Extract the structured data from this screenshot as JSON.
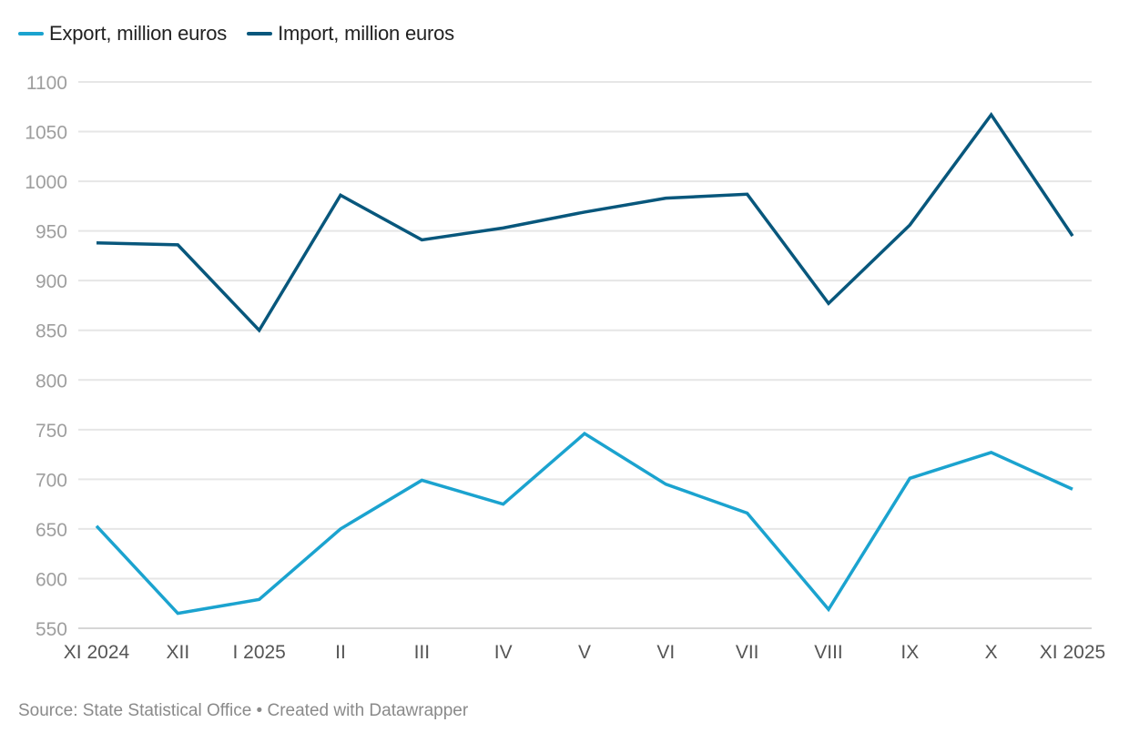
{
  "chart_data": {
    "type": "line",
    "title": "",
    "xlabel": "",
    "ylabel": "",
    "categories": [
      "XI 2024",
      "XII",
      "I 2025",
      "II",
      "III",
      "IV",
      "V",
      "VI",
      "VII",
      "VIII",
      "IX",
      "X",
      "XI 2025"
    ],
    "series": [
      {
        "name": "Export, million euros",
        "color": "#1ba3cf",
        "values": [
          653,
          565,
          579,
          650,
          699,
          675,
          746,
          695,
          666,
          569,
          701,
          727,
          690
        ]
      },
      {
        "name": "Import, million euros",
        "color": "#08577c",
        "values": [
          938,
          936,
          850,
          986,
          941,
          953,
          969,
          983,
          987,
          877,
          956,
          1067,
          945
        ]
      }
    ],
    "ylim": [
      550,
      1100
    ],
    "yticks": [
      550,
      600,
      650,
      700,
      750,
      800,
      850,
      900,
      950,
      1000,
      1050,
      1100
    ],
    "grid": true,
    "legend_position": "top-left"
  },
  "footer": {
    "text": "Source: State Statistical Office • Created with Datawrapper"
  }
}
